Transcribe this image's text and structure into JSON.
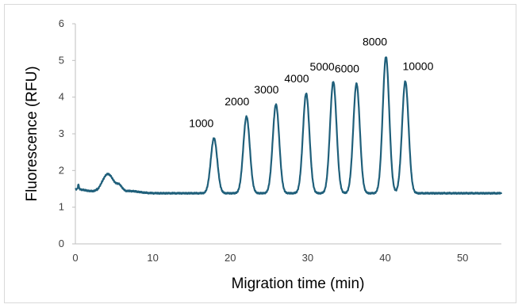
{
  "chart_data": {
    "type": "line",
    "title": "",
    "xlabel": "Migration time (min)",
    "ylabel": "Fluorescence (RFU)",
    "xlim": [
      0,
      55
    ],
    "ylim": [
      0,
      6
    ],
    "x_ticks": [
      "0",
      "10",
      "20",
      "30",
      "40",
      "50"
    ],
    "y_ticks": [
      "0",
      "1",
      "2",
      "3",
      "4",
      "5",
      "6"
    ],
    "grid": false,
    "legend": "none",
    "line_color": "#1f5f7a",
    "baseline": 1.38,
    "peaks": [
      {
        "label": "1000",
        "time": 17.9,
        "height": 2.88
      },
      {
        "label": "2000",
        "time": 22.1,
        "height": 3.47
      },
      {
        "label": "3000",
        "time": 25.9,
        "height": 3.8
      },
      {
        "label": "4000",
        "time": 29.8,
        "height": 4.1
      },
      {
        "label": "5000",
        "time": 33.3,
        "height": 4.42
      },
      {
        "label": "6000",
        "time": 36.3,
        "height": 4.37
      },
      {
        "label": "8000",
        "time": 40.1,
        "height": 5.1
      },
      {
        "label": "10000",
        "time": 42.6,
        "height": 4.43
      }
    ]
  }
}
